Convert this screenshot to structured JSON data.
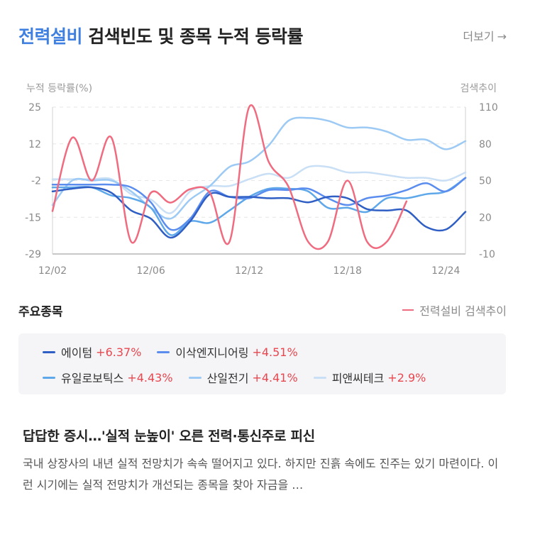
{
  "header": {
    "title_highlight": "전력설비",
    "title_rest": " 검색빈도 및 종목 누적 등락률",
    "more_label": "더보기",
    "more_arrow": "→"
  },
  "chart_data": {
    "type": "line",
    "left_axis_label": "누적 등락률(%)",
    "right_axis_label": "검색추이",
    "ylim": [
      -29,
      25
    ],
    "y_ticks": [
      25,
      12,
      -2,
      -15,
      -29
    ],
    "y2lim": [
      -10,
      110
    ],
    "y2_ticks": [
      110,
      80,
      50,
      20,
      -10
    ],
    "x_ticks": [
      {
        "index": 0,
        "label": "12/02"
      },
      {
        "index": 4,
        "label": "12/06"
      },
      {
        "index": 8,
        "label": "12/12"
      },
      {
        "index": 12,
        "label": "12/18"
      },
      {
        "index": 16,
        "label": "12/24"
      }
    ],
    "grid": true,
    "series": [
      {
        "name": "에이텀",
        "color": "#2f5fc4",
        "axis": "left",
        "values": [
          -6,
          -5,
          -4.5,
          -6.5,
          -13,
          -16,
          -23,
          -17,
          -7,
          -8,
          -8,
          -8.5,
          -8.5,
          -10,
          -8,
          -8.5,
          -12.5,
          -13,
          -13,
          -19,
          -20,
          -13.5
        ]
      },
      {
        "name": "이삭엔지니어링",
        "color": "#5b8def",
        "axis": "left",
        "values": [
          -3.5,
          -3.5,
          -3.5,
          -3.5,
          -4.5,
          -10,
          -20,
          -16,
          -6,
          -8,
          -8.5,
          -5.5,
          -5.5,
          -5,
          -8.5,
          -11,
          -8.5,
          -7.5,
          -5.5,
          -3,
          -6,
          -1
        ]
      },
      {
        "name": "유일로보틱스",
        "color": "#5ea8ea",
        "axis": "left",
        "values": [
          -4.5,
          -4.5,
          -4.5,
          -7.5,
          -8.5,
          -12,
          -22,
          -17,
          -17.5,
          -13,
          -8,
          -5,
          -5,
          -6,
          -12,
          -12,
          -13.5,
          -8.5,
          -8.5,
          -7,
          -6,
          -1
        ]
      },
      {
        "name": "산일전기",
        "color": "#9ccaf4",
        "axis": "left",
        "values": [
          -11,
          -2,
          -2,
          -2,
          -6,
          -12,
          -16,
          -9,
          -4,
          3,
          5,
          11,
          20,
          21,
          20,
          17.5,
          17.5,
          16,
          13,
          13,
          9.5,
          12.5
        ]
      },
      {
        "name": "피앤씨테크",
        "color": "#c9dff5",
        "axis": "left",
        "values": [
          -1.5,
          -1.5,
          -1.5,
          -1.5,
          -7,
          -9,
          -14,
          -6,
          -4,
          -4,
          -1.5,
          0.5,
          -1,
          3,
          3,
          1,
          1,
          0,
          -1,
          -1,
          -2,
          1
        ]
      },
      {
        "name": "전력설비 검색추이",
        "color": "#f06b7f",
        "axis": "right",
        "values": [
          25,
          85,
          50,
          85,
          0,
          40,
          32,
          43,
          40,
          0,
          110,
          65,
          45,
          0,
          0,
          50,
          0,
          0,
          33
        ]
      }
    ]
  },
  "section": {
    "title": "주요종목",
    "search_legend": "전력설비 검색추이"
  },
  "stocks": [
    {
      "name": "에이텀",
      "change": "+6.37%",
      "color": "#2f5fc4"
    },
    {
      "name": "이삭엔지니어링",
      "change": "+4.51%",
      "color": "#5b8def"
    },
    {
      "name": "유일로보틱스",
      "change": "+4.43%",
      "color": "#5ea8ea"
    },
    {
      "name": "산일전기",
      "change": "+4.41%",
      "color": "#9ccaf4"
    },
    {
      "name": "피앤씨테크",
      "change": "+2.9%",
      "color": "#c9dff5"
    }
  ],
  "news": {
    "title": "답답한 증시…'실적 눈높이' 오른 전력·통신주로 피신",
    "summary": "국내 상장사의 내년 실적 전망치가 속속 떨어지고 있다. 하지만 진흙 속에도 진주는 있기 마련이다. 이런 시기에는 실적 전망치가 개선되는 종목을 찾아 자금을 …"
  }
}
